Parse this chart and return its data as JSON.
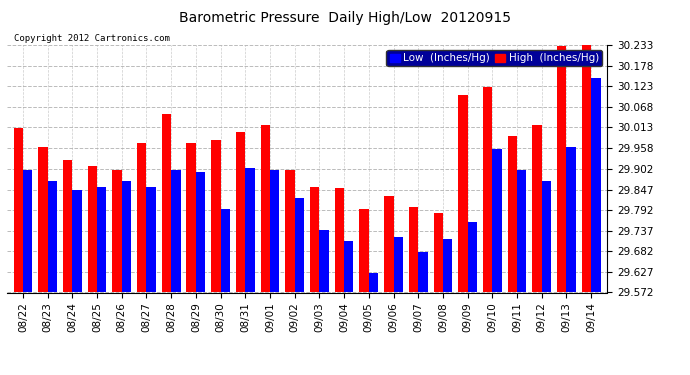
{
  "title": "Barometric Pressure  Daily High/Low  20120915",
  "copyright": "Copyright 2012 Cartronics.com",
  "legend_low": "Low  (Inches/Hg)",
  "legend_high": "High  (Inches/Hg)",
  "dates": [
    "08/22",
    "08/23",
    "08/24",
    "08/25",
    "08/26",
    "08/27",
    "08/28",
    "08/29",
    "08/30",
    "08/31",
    "09/01",
    "09/02",
    "09/03",
    "09/04",
    "09/05",
    "09/06",
    "09/07",
    "09/08",
    "09/09",
    "09/10",
    "09/11",
    "09/12",
    "09/13",
    "09/14"
  ],
  "low_values": [
    29.9,
    29.87,
    29.845,
    29.855,
    29.87,
    29.855,
    29.9,
    29.895,
    29.795,
    29.905,
    29.9,
    29.825,
    29.74,
    29.71,
    29.625,
    29.72,
    29.68,
    29.715,
    29.76,
    29.955,
    29.9,
    29.87,
    29.96,
    30.145
  ],
  "high_values": [
    30.01,
    29.96,
    29.925,
    29.91,
    29.9,
    29.97,
    30.05,
    29.97,
    29.98,
    30.0,
    30.02,
    29.9,
    29.855,
    29.85,
    29.795,
    29.83,
    29.8,
    29.785,
    30.1,
    30.12,
    29.99,
    30.02,
    30.23,
    30.235
  ],
  "ylim_min": 29.572,
  "ylim_max": 30.233,
  "yticks": [
    29.572,
    29.627,
    29.682,
    29.737,
    29.792,
    29.847,
    29.902,
    29.958,
    30.013,
    30.068,
    30.123,
    30.178,
    30.233
  ],
  "bar_color_low": "#0000ff",
  "bar_color_high": "#ff0000",
  "bg_color": "#ffffff",
  "plot_bg": "#ffffff",
  "grid_color": "#aaaaaa",
  "title_fontsize": 10,
  "tick_fontsize": 7.5,
  "legend_fontsize": 7.5,
  "bar_width": 0.38
}
